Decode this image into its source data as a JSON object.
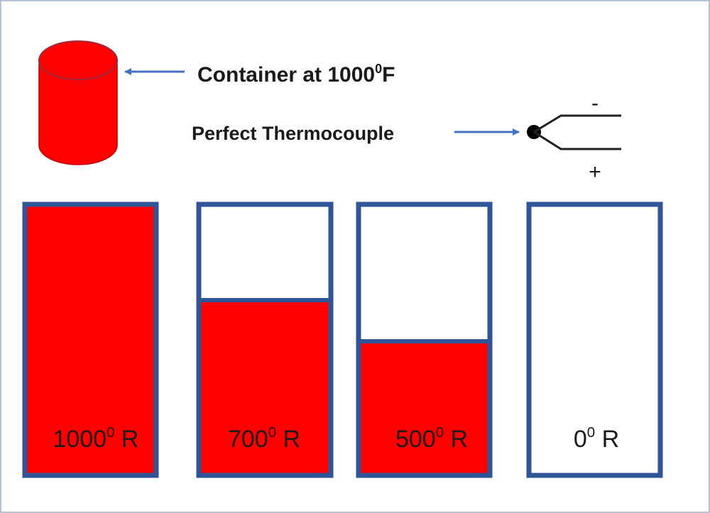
{
  "container": {
    "label": "Container at 1000",
    "superscript": "0",
    "unit": "F"
  },
  "thermocouple": {
    "label": "Perfect Thermocouple",
    "minus": "-",
    "plus": "+"
  },
  "containers": [
    {
      "value": "1000",
      "superscript": "0",
      "unit": " R"
    },
    {
      "value": "700",
      "superscript": "0",
      "unit": " R"
    },
    {
      "value": "500",
      "superscript": "0",
      "unit": " R"
    },
    {
      "value": "0",
      "superscript": "0",
      "unit": " R"
    }
  ]
}
